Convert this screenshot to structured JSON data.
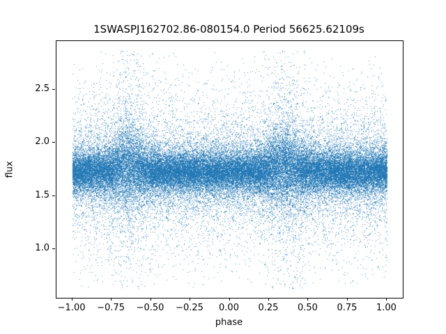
{
  "chart_data": {
    "type": "scatter",
    "title": "1SWASPJ162702.86-080154.0 Period 56625.62109s",
    "xlabel": "phase",
    "ylabel": "flux",
    "xlim": [
      -1.1,
      1.1
    ],
    "ylim": [
      0.54,
      2.96
    ],
    "x_ticks": [
      -1.0,
      -0.75,
      -0.5,
      -0.25,
      0.0,
      0.25,
      0.5,
      0.75,
      1.0
    ],
    "x_tick_labels": [
      "−1.00",
      "−0.75",
      "−0.50",
      "−0.25",
      "0.00",
      "0.25",
      "0.50",
      "0.75",
      "1.00"
    ],
    "y_ticks": [
      1.0,
      1.5,
      2.0,
      2.5
    ],
    "y_tick_labels": [
      "1.0",
      "1.5",
      "2.0",
      "2.5"
    ],
    "grid": false,
    "legend": null,
    "marker_color": "#1f77b4",
    "marker_alpha": 0.8,
    "marker_size_px": 1,
    "n_points": 60000,
    "seed": 42,
    "description": "Phase-folded photometric light curve scatter plot. Dense horizontal band of points at flux ~1.55-2.00 centered near 1.73 spanning the full phase range -1.0 to 1.0. Sparse outliers extend from flux ~0.65 up to ~2.85. Slightly enhanced vertical scatter (bumps reaching ~2.3) near phase 0.35 and its alias -0.65.",
    "x_range": [
      -1.0,
      1.0
    ],
    "y_model": {
      "baseline_mean": 1.73,
      "components": [
        {
          "weight": 0.56,
          "std": 0.085
        },
        {
          "weight": 0.27,
          "std": 0.165
        },
        {
          "weight": 0.17,
          "std": 0.42
        }
      ],
      "clip": [
        0.63,
        2.87
      ],
      "bump_phase": 0.35,
      "bump_phase_alias": -0.65,
      "bump_width": 0.07,
      "bump_spread_multiplier": 1.9,
      "bump_mean_shift": 0.05
    }
  }
}
